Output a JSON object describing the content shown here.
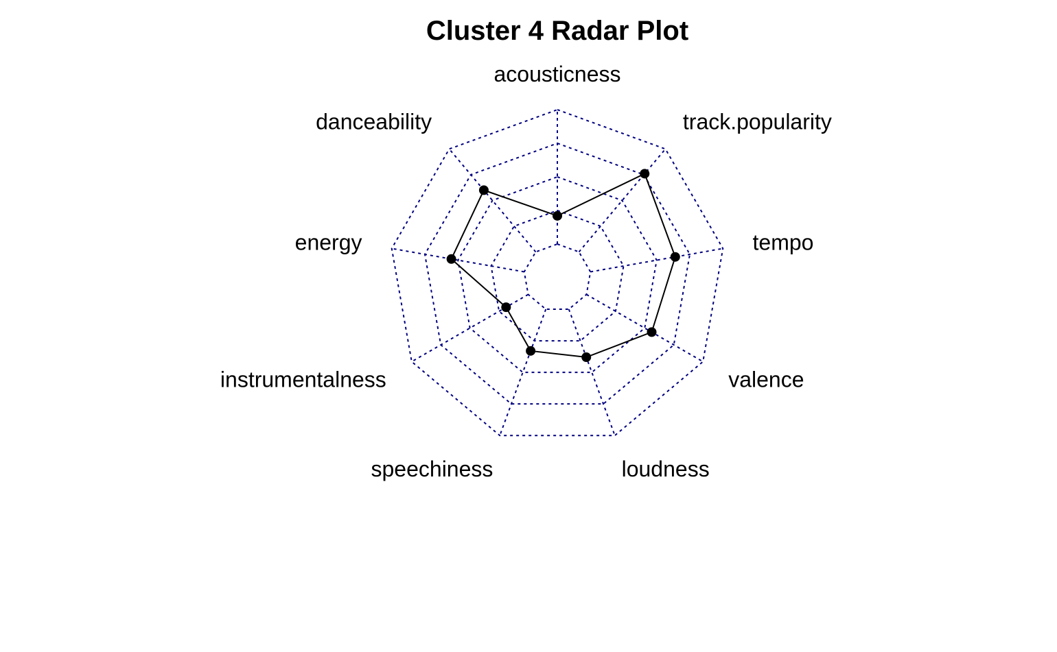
{
  "chart_data": {
    "type": "radar",
    "title": "Cluster 4 Radar Plot",
    "axes": [
      "acousticness",
      "track.popularity",
      "tempo",
      "valence",
      "loudness",
      "speechiness",
      "instrumentalness",
      "energy",
      "danceability"
    ],
    "range": [
      0,
      1
    ],
    "rings": 5,
    "series": [
      {
        "values": [
          0.21,
          0.76,
          0.64,
          0.56,
          0.38,
          0.33,
          0.19,
          0.55,
          0.6
        ],
        "color": "#000000"
      }
    ],
    "grid_color": "#000080",
    "legend": "none"
  }
}
